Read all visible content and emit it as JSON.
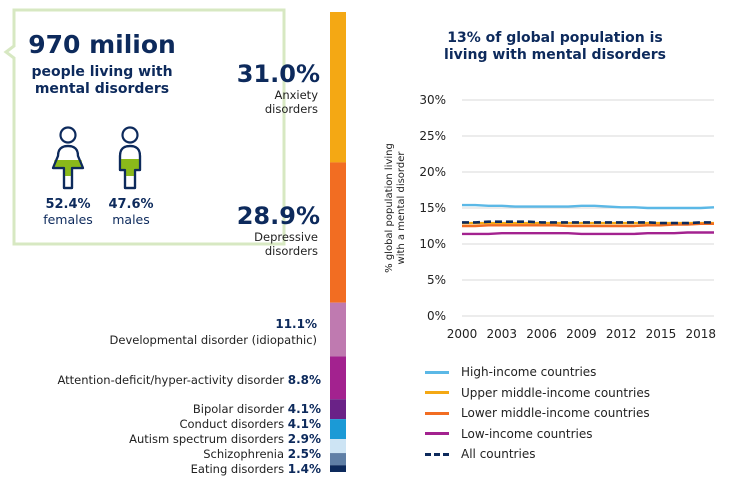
{
  "callout": {
    "number": "970 milion",
    "subtitle_line1": "people living with",
    "subtitle_line2": "mental disorders",
    "females_pct": "52.4%",
    "females_label": "females",
    "males_pct": "47.6%",
    "males_label": "males"
  },
  "colors": {
    "navy": "#0d2a5c",
    "green": "#8ab91a",
    "box_border": "#d7e8c2"
  },
  "disorders": [
    {
      "value": "31.0%",
      "label_line1": "Anxiety",
      "label_line2": "disorders",
      "share": 31.0,
      "color": "#f4a814"
    },
    {
      "value": "28.9%",
      "label_line1": "Depressive",
      "label_line2": "disorders",
      "share": 28.9,
      "color": "#f26d22"
    },
    {
      "value": "11.1%",
      "label": "Developmental disorder (idiopathic)",
      "share": 11.1,
      "color": "#bf7ab0"
    },
    {
      "value": "8.8%",
      "label": "Attention-deficit/hyper-activity disorder",
      "share": 8.8,
      "color": "#a3228f"
    },
    {
      "value": "4.1%",
      "label": "Bipolar disorder",
      "share": 4.1,
      "color": "#6a2287"
    },
    {
      "value": "4.1%",
      "label": "Conduct disorders",
      "share": 4.1,
      "color": "#1b9ad6"
    },
    {
      "value": "2.9%",
      "label": "Autism spectrum disorders",
      "share": 2.9,
      "color": "#cde4f4"
    },
    {
      "value": "2.5%",
      "label": "Schizophrenia",
      "share": 2.5,
      "color": "#5f7fa6"
    },
    {
      "value": "1.4%",
      "label": "Eating disorders",
      "share": 1.4,
      "color": "#0d2a5c"
    }
  ],
  "chart_data": {
    "type": "line",
    "title_line1": "13% of global population is",
    "title_line2": "living with mental disorders",
    "ylabel_line1": "% global population living",
    "ylabel_line2": "with a mental disorder",
    "ylim": [
      0,
      30
    ],
    "yticks": [
      "0%",
      "5%",
      "10%",
      "15%",
      "20%",
      "25%",
      "30%"
    ],
    "ytick_values": [
      0,
      5,
      10,
      15,
      20,
      25,
      30
    ],
    "xlim": [
      2000,
      2019
    ],
    "xticks": [
      "2000",
      "2003",
      "2006",
      "2009",
      "2012",
      "2015",
      "2018"
    ],
    "xtick_values": [
      2000,
      2003,
      2006,
      2009,
      2012,
      2015,
      2018
    ],
    "grid": true,
    "x": [
      2000,
      2001,
      2002,
      2003,
      2004,
      2005,
      2006,
      2007,
      2008,
      2009,
      2010,
      2011,
      2012,
      2013,
      2014,
      2015,
      2016,
      2017,
      2018,
      2019
    ],
    "series": [
      {
        "name": "High-income countries",
        "color": "#5bb8e6",
        "dash": false,
        "values": [
          15.4,
          15.4,
          15.3,
          15.3,
          15.2,
          15.2,
          15.2,
          15.2,
          15.2,
          15.3,
          15.3,
          15.2,
          15.1,
          15.1,
          15.0,
          15.0,
          15.0,
          15.0,
          15.0,
          15.1
        ]
      },
      {
        "name": "Upper middle-income countries",
        "color": "#f4a814",
        "dash": false,
        "values": [
          12.9,
          12.9,
          12.9,
          12.9,
          12.9,
          12.9,
          12.9,
          12.9,
          12.9,
          12.9,
          12.9,
          12.9,
          12.9,
          12.9,
          12.9,
          12.9,
          12.9,
          12.9,
          12.9,
          12.9
        ]
      },
      {
        "name": "Lower middle-income countries",
        "color": "#f26d22",
        "dash": false,
        "values": [
          12.5,
          12.5,
          12.6,
          12.6,
          12.6,
          12.6,
          12.6,
          12.6,
          12.5,
          12.5,
          12.5,
          12.5,
          12.5,
          12.5,
          12.6,
          12.6,
          12.7,
          12.7,
          12.8,
          12.8
        ]
      },
      {
        "name": "Low-income countries",
        "color": "#a3228f",
        "dash": false,
        "values": [
          11.4,
          11.4,
          11.4,
          11.5,
          11.5,
          11.5,
          11.5,
          11.5,
          11.5,
          11.4,
          11.4,
          11.4,
          11.4,
          11.4,
          11.5,
          11.5,
          11.5,
          11.6,
          11.6,
          11.6
        ]
      },
      {
        "name": "All countries",
        "color": "#0d2a5c",
        "dash": true,
        "values": [
          13.0,
          13.0,
          13.1,
          13.1,
          13.1,
          13.1,
          13.0,
          13.0,
          13.0,
          13.0,
          13.0,
          13.0,
          13.0,
          13.0,
          13.0,
          12.9,
          12.9,
          12.9,
          13.0,
          13.0
        ]
      }
    ]
  }
}
